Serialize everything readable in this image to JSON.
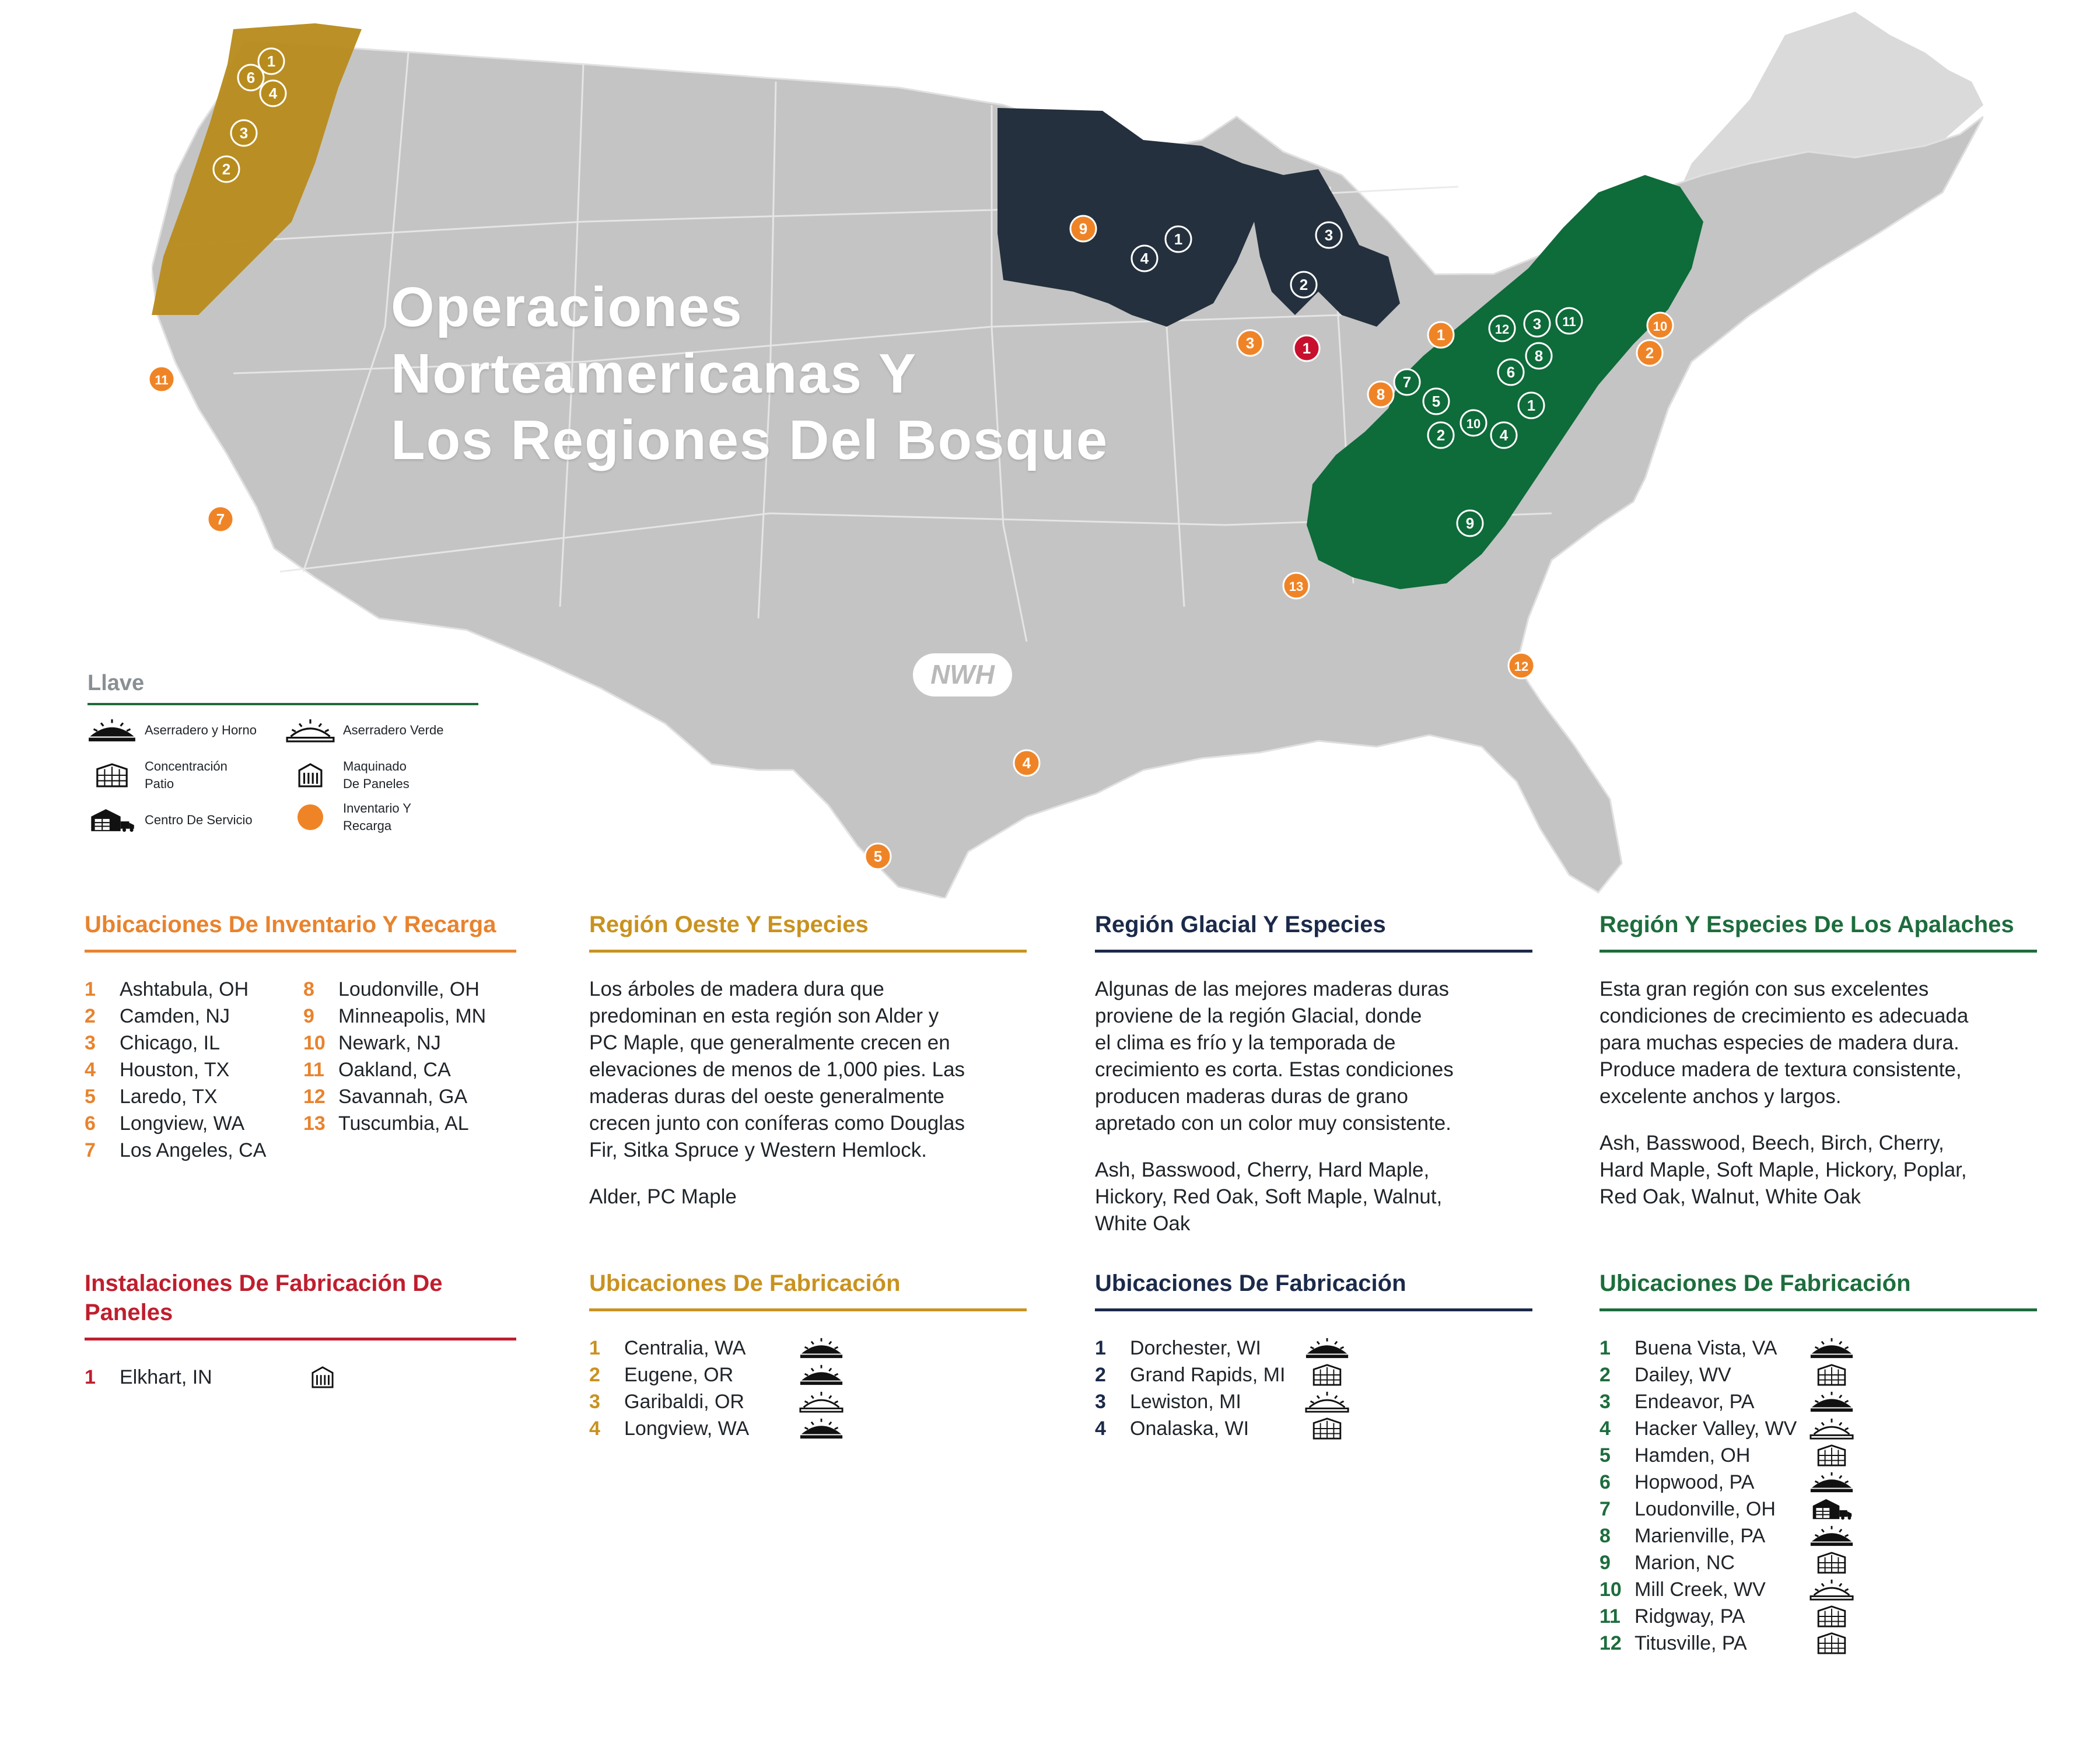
{
  "map": {
    "title_lines": [
      "Operaciones",
      "Norteamericanas Y",
      "Los Regiones Del Bosque"
    ],
    "logo_text": "NWH",
    "colors": {
      "land": "#c4c4c4",
      "west_region": "#b88b1d",
      "glacial_region": "#24303d",
      "appalachian_region": "#0e6b3a",
      "inventory_marker": "#ef8427",
      "panel_marker": "#c8102e"
    },
    "markers": {
      "west": [
        "1",
        "6",
        "4",
        "3",
        "2"
      ],
      "glacial": [
        "1",
        "4",
        "3",
        "2"
      ],
      "appalachian": [
        "12",
        "3",
        "11",
        "8",
        "6",
        "7",
        "5",
        "1",
        "2",
        "10",
        "4",
        "9"
      ],
      "inventory": [
        "9",
        "3",
        "1",
        "10",
        "2",
        "8",
        "11",
        "7",
        "13",
        "12",
        "4",
        "5"
      ],
      "panel": [
        "1"
      ]
    }
  },
  "legend": {
    "title": "Llave",
    "items": {
      "sawmill_kiln": "Aserradero y Horno",
      "green_sawmill": "Aserradero Verde",
      "concentration_line1": "Concentración",
      "concentration_line2": "Patio",
      "panel_line1": "Maquinado",
      "panel_line2": "De Paneles",
      "service_center": "Centro De Servicio",
      "inventory_line1": "Inventario Y",
      "inventory_line2": "Recarga"
    }
  },
  "inventory": {
    "title": "Ubicaciones De Inventario Y Recarga",
    "col1": [
      {
        "num": "1",
        "name": "Ashtabula, OH"
      },
      {
        "num": "2",
        "name": "Camden, NJ"
      },
      {
        "num": "3",
        "name": "Chicago, IL"
      },
      {
        "num": "4",
        "name": "Houston, TX"
      },
      {
        "num": "5",
        "name": "Laredo, TX"
      },
      {
        "num": "6",
        "name": "Longview, WA"
      },
      {
        "num": "7",
        "name": "Los Angeles, CA"
      }
    ],
    "col2": [
      {
        "num": "8",
        "name": "Loudonville, OH"
      },
      {
        "num": "9",
        "name": "Minneapolis, MN"
      },
      {
        "num": "10",
        "name": "Newark, NJ"
      },
      {
        "num": "11",
        "name": "Oakland, CA"
      },
      {
        "num": "12",
        "name": "Savannah, GA"
      },
      {
        "num": "13",
        "name": "Tuscumbia, AL"
      }
    ]
  },
  "panels": {
    "title": "Instalaciones De Fabricación De Paneles",
    "items": [
      {
        "num": "1",
        "name": "Elkhart, IN",
        "icon": "panel-machining-icon"
      }
    ]
  },
  "west": {
    "title": "Región Oeste Y Especies",
    "paragraph": "Los árboles de madera dura que\npredominan en esta región son Alder y\nPC Maple, que generalmente crecen en\nelevaciones de menos de 1,000 pies. Las\nmaderas duras del oeste generalmente\ncrecen junto con coníferas como Douglas\nFir, Sitka Spruce y Western Hemlock.",
    "species": "Alder, PC Maple",
    "mfg_title": "Ubicaciones De Fabricación",
    "mfg": [
      {
        "num": "1",
        "name": "Centralia, WA",
        "icon": "sawmill-kiln-icon"
      },
      {
        "num": "2",
        "name": "Eugene, OR",
        "icon": "sawmill-kiln-icon"
      },
      {
        "num": "3",
        "name": "Garibaldi, OR",
        "icon": "green-sawmill-icon"
      },
      {
        "num": "4",
        "name": "Longview, WA",
        "icon": "sawmill-kiln-icon"
      }
    ]
  },
  "glacial": {
    "title": "Región Glacial Y Especies",
    "paragraph": "Algunas de las mejores maderas duras\nproviene de la región Glacial, donde\nel clima es frío y la temporada de\ncrecimiento es corta. Estas condiciones\nproducen maderas duras de grano\napretado con un color muy consistente.",
    "species": "Ash, Basswood, Cherry, Hard Maple,\nHickory, Red Oak, Soft Maple, Walnut,\nWhite Oak",
    "mfg_title": "Ubicaciones De Fabricación",
    "mfg": [
      {
        "num": "1",
        "name": "Dorchester, WI",
        "icon": "sawmill-kiln-icon"
      },
      {
        "num": "2",
        "name": "Grand Rapids, MI",
        "icon": "concentration-yard-icon"
      },
      {
        "num": "3",
        "name": "Lewiston, MI",
        "icon": "green-sawmill-icon"
      },
      {
        "num": "4",
        "name": "Onalaska, WI",
        "icon": "concentration-yard-icon"
      }
    ]
  },
  "appalachian": {
    "title": "Región Y Especies De Los Apalaches",
    "paragraph": "Esta gran región con sus excelentes\ncondiciones de crecimiento es adecuada\npara muchas especies de madera dura.\nProduce madera de textura consistente,\nexcelente anchos y largos.",
    "species": "Ash, Basswood, Beech, Birch, Cherry,\nHard Maple, Soft Maple, Hickory, Poplar,\nRed Oak, Walnut, White Oak",
    "mfg_title": "Ubicaciones De Fabricación",
    "mfg": [
      {
        "num": "1",
        "name": "Buena Vista, VA",
        "icon": "sawmill-kiln-icon"
      },
      {
        "num": "2",
        "name": "Dailey, WV",
        "icon": "concentration-yard-icon"
      },
      {
        "num": "3",
        "name": "Endeavor, PA",
        "icon": "sawmill-kiln-icon"
      },
      {
        "num": "4",
        "name": "Hacker Valley, WV",
        "icon": "green-sawmill-icon"
      },
      {
        "num": "5",
        "name": "Hamden, OH",
        "icon": "concentration-yard-icon"
      },
      {
        "num": "6",
        "name": "Hopwood, PA",
        "icon": "sawmill-kiln-icon"
      },
      {
        "num": "7",
        "name": "Loudonville, OH",
        "icon": "service-center-icon"
      },
      {
        "num": "8",
        "name": "Marienville, PA",
        "icon": "sawmill-kiln-icon"
      },
      {
        "num": "9",
        "name": "Marion, NC",
        "icon": "concentration-yard-icon"
      },
      {
        "num": "10",
        "name": "Mill Creek, WV",
        "icon": "green-sawmill-icon"
      },
      {
        "num": "11",
        "name": "Ridgway, PA",
        "icon": "concentration-yard-icon"
      },
      {
        "num": "12",
        "name": "Titusville, PA",
        "icon": "concentration-yard-icon"
      }
    ]
  }
}
